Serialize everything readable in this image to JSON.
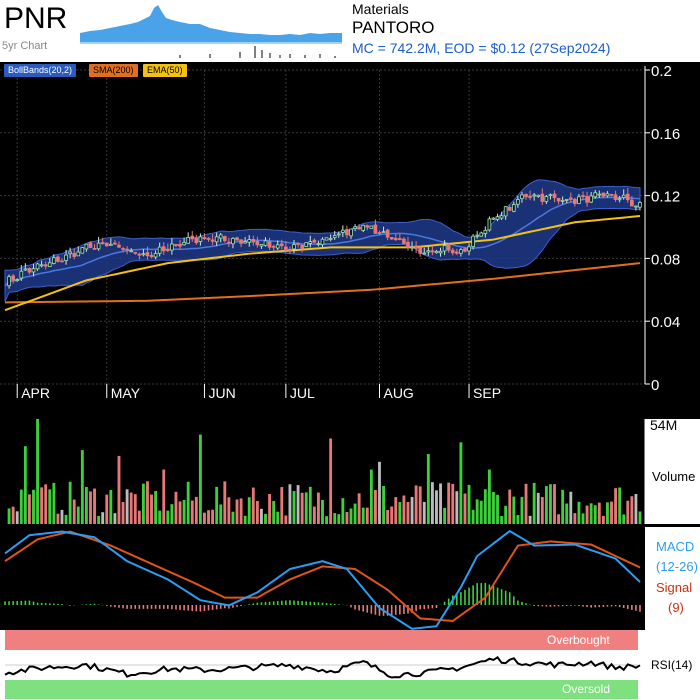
{
  "header": {
    "ticker": "PNR",
    "five_year_label": "5yr Chart",
    "sector": "Materials",
    "company": "PANTORO",
    "market_summary": "MC = 742.2M, EOD = $0.12 (27Sep2024)"
  },
  "legend": [
    {
      "label": "BollBands(20,2)",
      "bg": "#2a5bbf",
      "fg": "#ffffff"
    },
    {
      "label": "SMA(200)",
      "bg": "#e07020",
      "fg": "#000000"
    },
    {
      "label": "EMA(50)",
      "bg": "#f4c20d",
      "fg": "#000000"
    }
  ],
  "colors": {
    "up": "#3cd03c",
    "down": "#e87878",
    "neutral": "#bbbbbb",
    "boll": "#1f3a8a",
    "sma": "#e07020",
    "ema": "#f4c20d",
    "macd": "#2a9df4",
    "signal": "#e0541a",
    "overbought": "#f08080",
    "oversold": "#7ee07e"
  },
  "chart_data": [
    {
      "type": "candlestick",
      "ylim": [
        0,
        0.2
      ],
      "yticks": [
        "0.2",
        "0.16",
        "0.12",
        "0.08",
        "0.04",
        "0"
      ],
      "month_labels": [
        "APR",
        "MAY",
        "JUN",
        "JUL",
        "AUG",
        "SEP"
      ],
      "anchors_close": [
        [
          0,
          0.064
        ],
        [
          5,
          0.072
        ],
        [
          10,
          0.076
        ],
        [
          15,
          0.081
        ],
        [
          20,
          0.087
        ],
        [
          25,
          0.089
        ],
        [
          30,
          0.085
        ],
        [
          35,
          0.082
        ],
        [
          40,
          0.086
        ],
        [
          45,
          0.092
        ],
        [
          50,
          0.093
        ],
        [
          55,
          0.092
        ],
        [
          60,
          0.091
        ],
        [
          65,
          0.088
        ],
        [
          70,
          0.086
        ],
        [
          75,
          0.09
        ],
        [
          80,
          0.093
        ],
        [
          85,
          0.099
        ],
        [
          88,
          0.101
        ],
        [
          92,
          0.097
        ],
        [
          96,
          0.091
        ],
        [
          100,
          0.086
        ],
        [
          104,
          0.085
        ],
        [
          108,
          0.086
        ],
        [
          112,
          0.083
        ],
        [
          116,
          0.095
        ],
        [
          120,
          0.105
        ],
        [
          124,
          0.112
        ],
        [
          128,
          0.121
        ],
        [
          132,
          0.119
        ],
        [
          136,
          0.118
        ],
        [
          140,
          0.117
        ],
        [
          144,
          0.119
        ],
        [
          148,
          0.12
        ],
        [
          152,
          0.118
        ],
        [
          156,
          0.113
        ]
      ],
      "anchors_sma": [
        [
          0,
          0.052
        ],
        [
          35,
          0.053
        ],
        [
          60,
          0.056
        ],
        [
          90,
          0.06
        ],
        [
          120,
          0.067
        ],
        [
          156,
          0.077
        ]
      ],
      "anchors_ema": [
        [
          0,
          0.047
        ],
        [
          20,
          0.066
        ],
        [
          40,
          0.077
        ],
        [
          60,
          0.083
        ],
        [
          80,
          0.087
        ],
        [
          100,
          0.087
        ],
        [
          120,
          0.092
        ],
        [
          140,
          0.103
        ],
        [
          156,
          0.107
        ]
      ]
    },
    {
      "type": "bar",
      "series_name": "Volume",
      "ymax_label": "54M",
      "ymax": 54
    },
    {
      "type": "line",
      "series": [
        {
          "name": "MACD"
        },
        {
          "name": "Signal"
        }
      ],
      "macd_label": [
        "MACD",
        "(12-26)"
      ],
      "signal_label": [
        "Signal",
        "(9)"
      ]
    },
    {
      "type": "line",
      "series": [
        {
          "name": "RSI(14)"
        }
      ],
      "overbought_label": "Overbought",
      "oversold_label": "Oversold"
    }
  ]
}
